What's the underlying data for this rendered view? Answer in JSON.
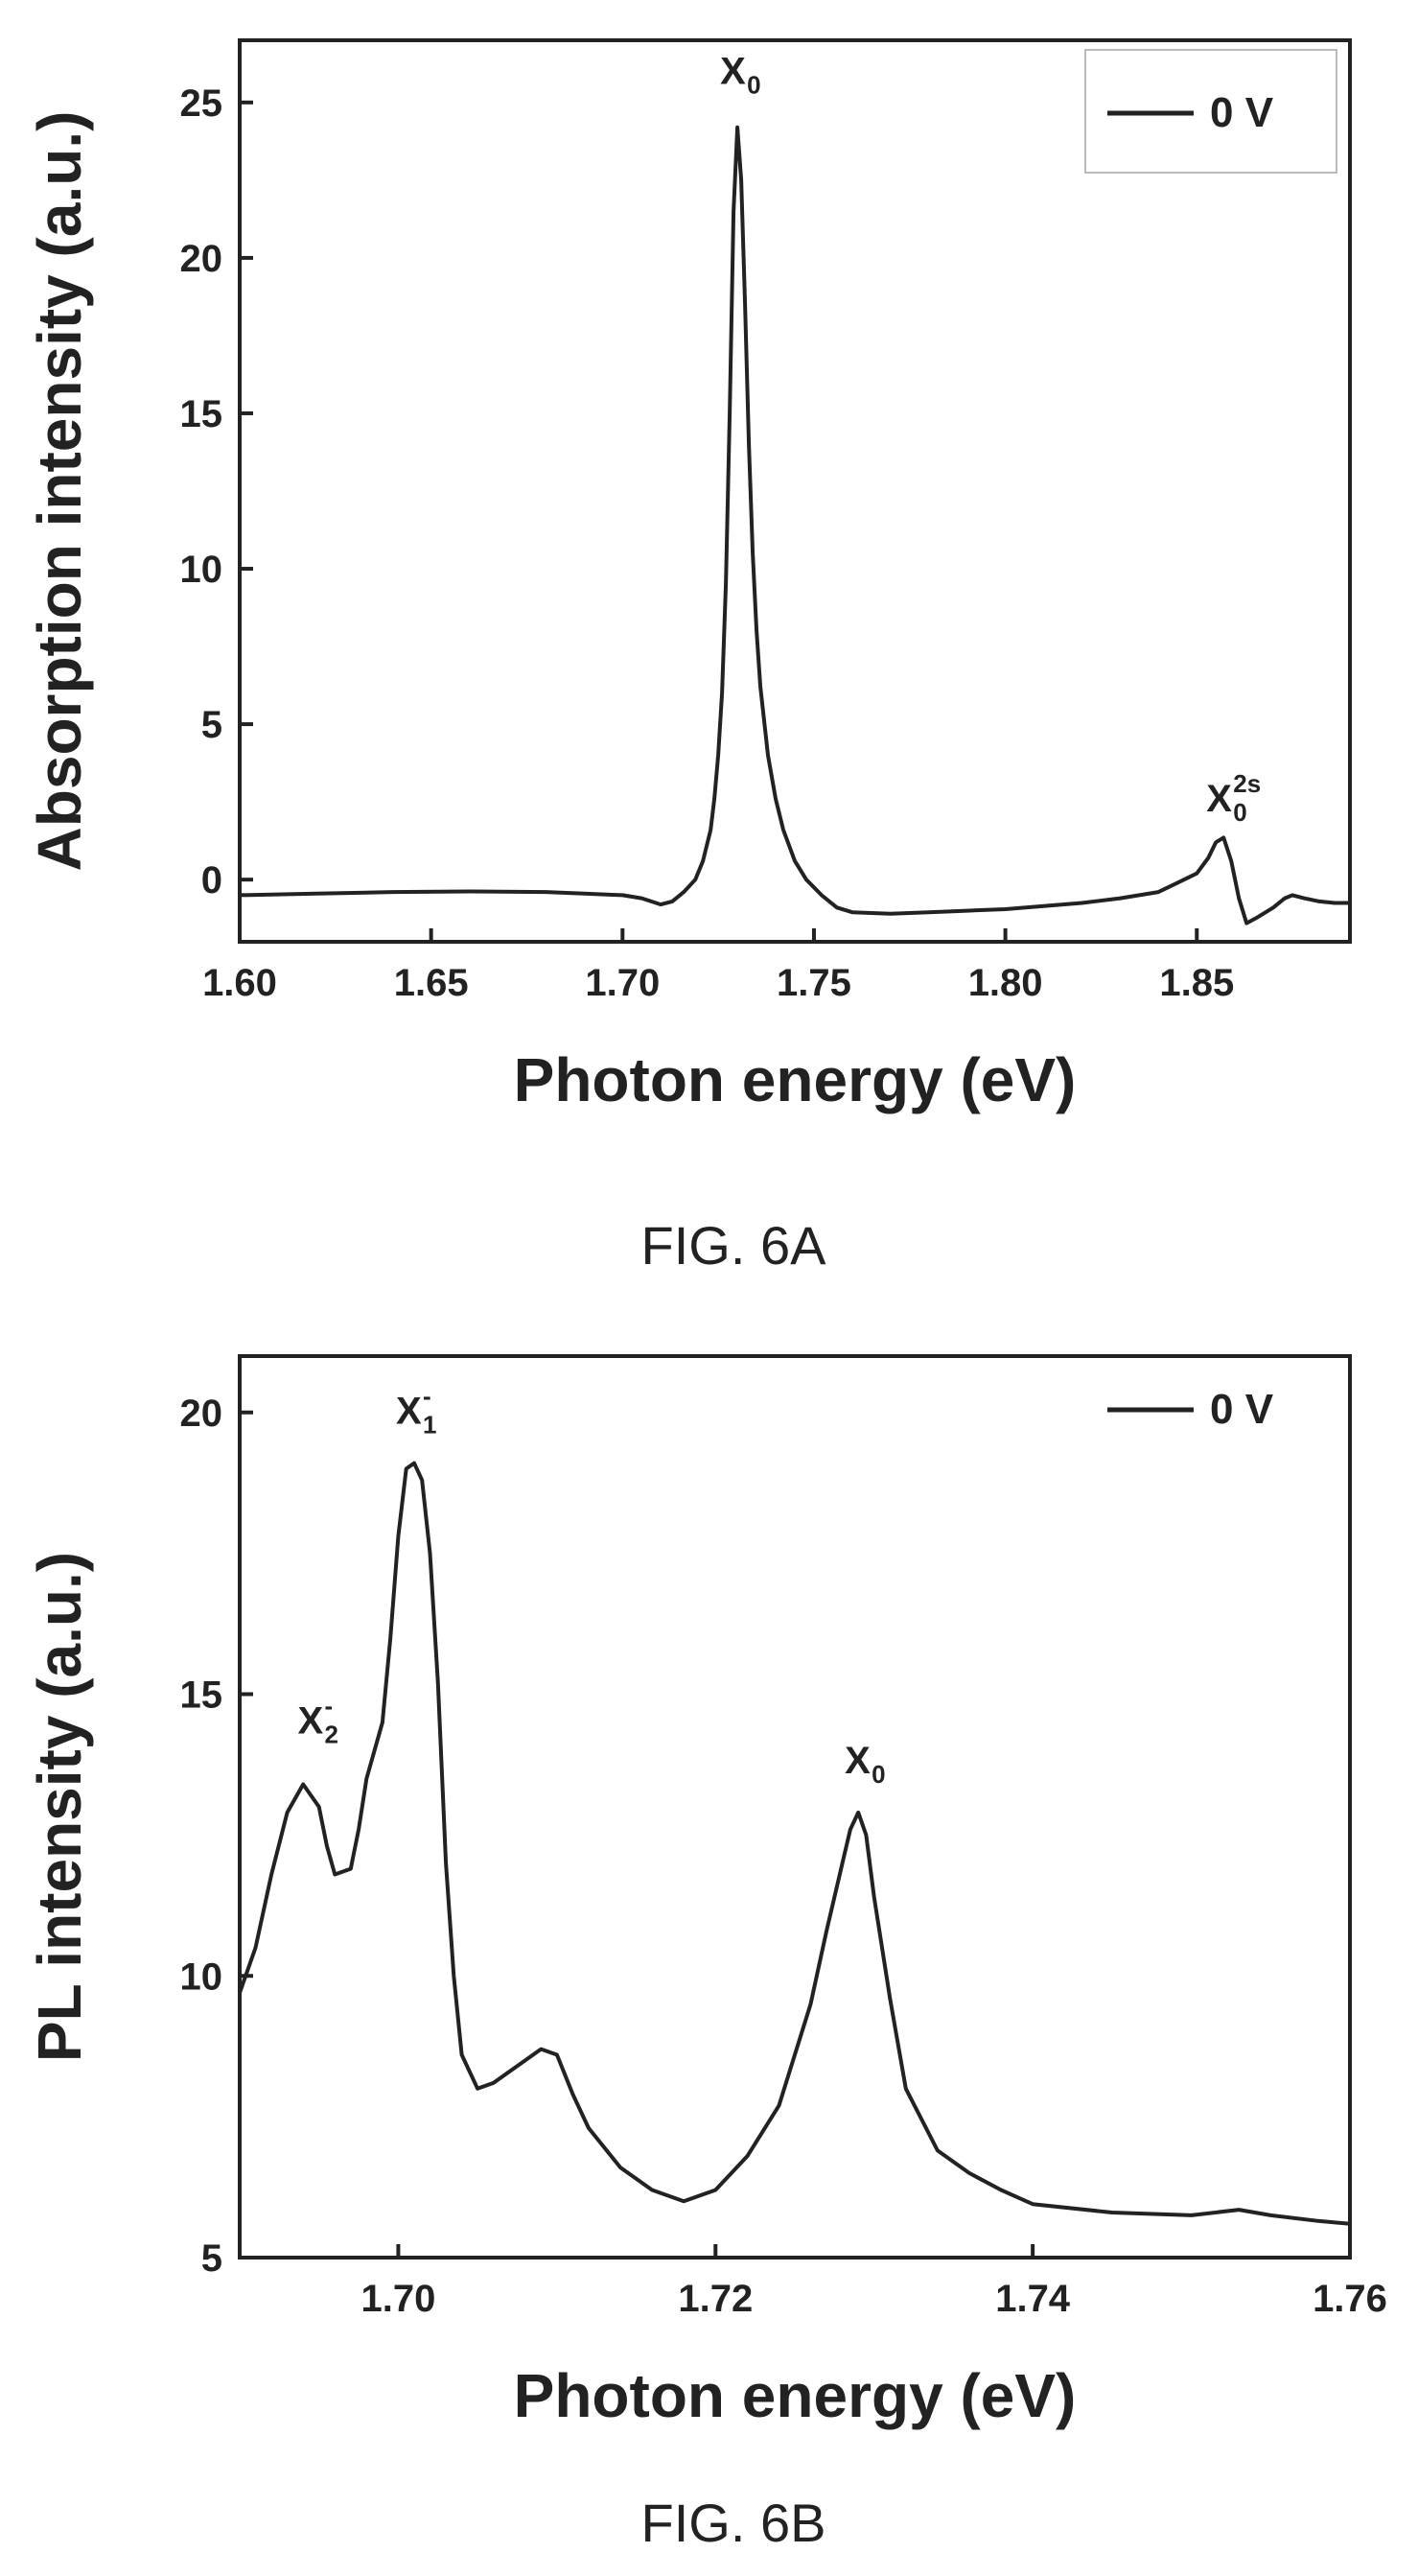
{
  "chart_data": [
    {
      "type": "line",
      "figure_label": "FIG. 6A",
      "xlabel": "Photon energy (eV)",
      "ylabel": "Absorption intensity (a.u.)",
      "xlim": [
        1.6,
        1.89
      ],
      "ylim": [
        -2,
        27
      ],
      "xticks": [
        "1.60",
        "1.65",
        "1.70",
        "1.75",
        "1.80",
        "1.85"
      ],
      "xtick_values": [
        1.6,
        1.65,
        1.7,
        1.75,
        1.8,
        1.85
      ],
      "yticks": [
        "0",
        "5",
        "10",
        "15",
        "20",
        "25"
      ],
      "ytick_values": [
        0,
        5,
        10,
        15,
        20,
        25
      ],
      "legend": {
        "position": "top-right",
        "entries": [
          "0 V"
        ]
      },
      "annotations": [
        {
          "text": "X",
          "sub": "0",
          "sup": "",
          "x": 1.729,
          "y": 25.6
        },
        {
          "text": "X",
          "sub": "0",
          "sup": "2s",
          "x": 1.856,
          "y": 2.2
        }
      ],
      "series": [
        {
          "name": "0 V",
          "x": [
            1.6,
            1.62,
            1.64,
            1.66,
            1.68,
            1.69,
            1.7,
            1.705,
            1.71,
            1.713,
            1.716,
            1.719,
            1.721,
            1.723,
            1.724,
            1.725,
            1.726,
            1.727,
            1.728,
            1.729,
            1.73,
            1.731,
            1.732,
            1.733,
            1.734,
            1.735,
            1.736,
            1.738,
            1.74,
            1.742,
            1.745,
            1.748,
            1.752,
            1.756,
            1.76,
            1.77,
            1.78,
            1.79,
            1.8,
            1.81,
            1.82,
            1.83,
            1.84,
            1.845,
            1.85,
            1.853,
            1.855,
            1.857,
            1.859,
            1.861,
            1.863,
            1.866,
            1.87,
            1.873,
            1.875,
            1.878,
            1.882,
            1.886,
            1.89
          ],
          "y": [
            -0.5,
            -0.45,
            -0.4,
            -0.38,
            -0.4,
            -0.45,
            -0.5,
            -0.6,
            -0.8,
            -0.7,
            -0.4,
            0.0,
            0.6,
            1.6,
            2.6,
            4.0,
            6.0,
            9.5,
            15.0,
            21.5,
            24.2,
            22.5,
            18.5,
            14.0,
            10.5,
            8.0,
            6.2,
            4.0,
            2.6,
            1.6,
            0.6,
            0.0,
            -0.5,
            -0.9,
            -1.05,
            -1.1,
            -1.05,
            -1.0,
            -0.95,
            -0.85,
            -0.75,
            -0.6,
            -0.4,
            -0.1,
            0.2,
            0.7,
            1.2,
            1.35,
            0.6,
            -0.6,
            -1.4,
            -1.2,
            -0.9,
            -0.6,
            -0.5,
            -0.6,
            -0.7,
            -0.75,
            -0.75
          ]
        }
      ]
    },
    {
      "type": "line",
      "figure_label": "FIG. 6B",
      "xlabel": "Photon energy (eV)",
      "ylabel": "PL intensity (a.u.)",
      "xlim": [
        1.69,
        1.76
      ],
      "ylim": [
        5,
        21
      ],
      "xticks": [
        "1.70",
        "1.72",
        "1.74",
        "1.76"
      ],
      "xtick_values": [
        1.7,
        1.72,
        1.74,
        1.76
      ],
      "yticks": [
        "5",
        "10",
        "15",
        "20"
      ],
      "ytick_values": [
        5,
        10,
        15,
        20
      ],
      "legend": {
        "position": "top-right",
        "entries": [
          "0 V"
        ]
      },
      "annotations": [
        {
          "text": "X",
          "sub": "2",
          "sup": "-",
          "x": 1.6945,
          "y": 14.3
        },
        {
          "text": "X",
          "sub": "1",
          "sup": "-",
          "x": 1.7007,
          "y": 19.8
        },
        {
          "text": "X",
          "sub": "0",
          "sup": "",
          "x": 1.729,
          "y": 13.6
        }
      ],
      "series": [
        {
          "name": "0 V",
          "x": [
            1.69,
            1.691,
            1.692,
            1.693,
            1.694,
            1.695,
            1.6955,
            1.696,
            1.697,
            1.6975,
            1.698,
            1.699,
            1.6995,
            1.7,
            1.7005,
            1.701,
            1.7015,
            1.702,
            1.7025,
            1.703,
            1.7035,
            1.704,
            1.705,
            1.706,
            1.707,
            1.708,
            1.709,
            1.71,
            1.711,
            1.712,
            1.714,
            1.716,
            1.718,
            1.72,
            1.722,
            1.724,
            1.726,
            1.727,
            1.728,
            1.7285,
            1.729,
            1.7295,
            1.73,
            1.731,
            1.732,
            1.734,
            1.736,
            1.738,
            1.74,
            1.745,
            1.75,
            1.753,
            1.755,
            1.758,
            1.76
          ],
          "y": [
            9.7,
            10.5,
            11.8,
            12.9,
            13.4,
            13.0,
            12.3,
            11.8,
            11.9,
            12.6,
            13.5,
            14.5,
            16.0,
            17.8,
            19.0,
            19.1,
            18.8,
            17.5,
            15.2,
            12.0,
            10.0,
            8.6,
            8.0,
            8.1,
            8.3,
            8.5,
            8.7,
            8.6,
            7.9,
            7.3,
            6.6,
            6.2,
            6.0,
            6.2,
            6.8,
            7.7,
            9.5,
            10.8,
            12.0,
            12.6,
            12.9,
            12.5,
            11.4,
            9.6,
            8.0,
            6.9,
            6.5,
            6.2,
            5.95,
            5.8,
            5.75,
            5.85,
            5.75,
            5.65,
            5.6
          ]
        }
      ]
    }
  ]
}
